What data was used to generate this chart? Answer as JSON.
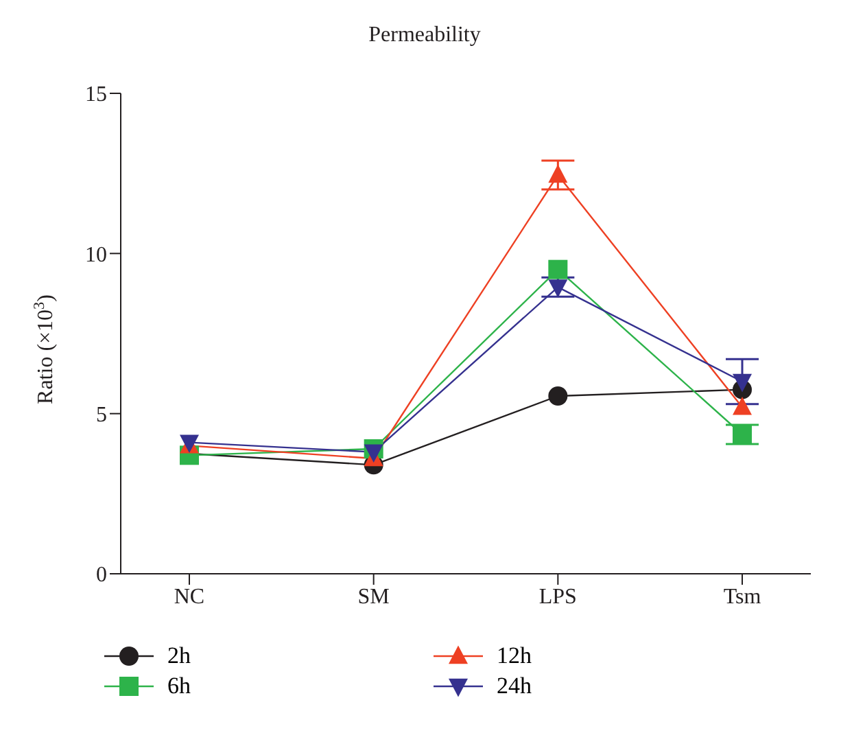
{
  "chart_data": {
    "type": "line",
    "title": "Permeability",
    "ylabel": "Ratio (×10$^{3}$)",
    "categories": [
      "NC",
      "SM",
      "LPS",
      "Tsm"
    ],
    "series": [
      {
        "name": "2h",
        "color": "#231f20",
        "marker": "circle",
        "values": [
          3.75,
          3.4,
          5.55,
          5.75
        ]
      },
      {
        "name": "6h",
        "color": "#2db34a",
        "marker": "square",
        "values": [
          3.7,
          3.9,
          9.5,
          4.35
        ],
        "errors": [
          null,
          null,
          null,
          0.3
        ]
      },
      {
        "name": "12h",
        "color": "#ee4023",
        "marker": "triangle",
        "values": [
          4.0,
          3.6,
          12.45,
          5.2
        ],
        "errors": [
          null,
          null,
          0.45,
          null
        ]
      },
      {
        "name": "24h",
        "color": "#35318f",
        "marker": "triangle-down",
        "values": [
          4.1,
          3.8,
          8.95,
          6.0
        ],
        "errors": [
          null,
          null,
          0.3,
          0.7
        ]
      }
    ],
    "ylim": [
      0,
      15
    ],
    "yticks": [
      0,
      5,
      10,
      15
    ],
    "legend": "bottom"
  }
}
